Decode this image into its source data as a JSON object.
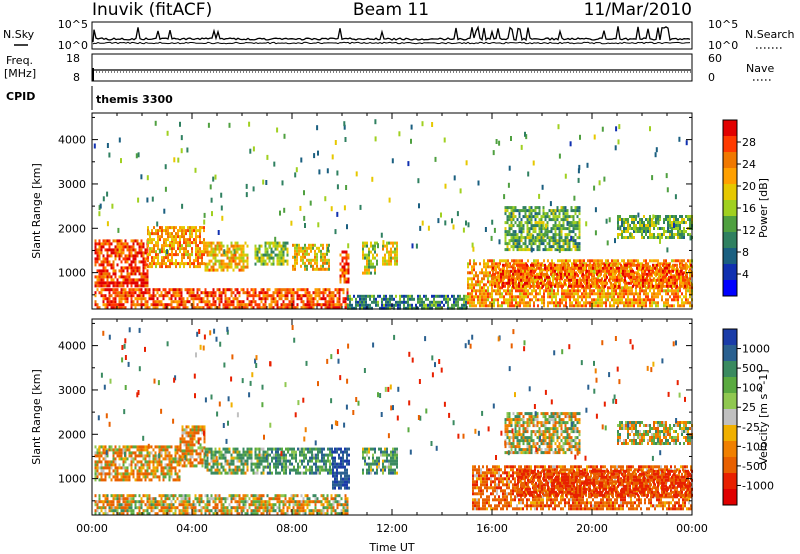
{
  "header": {
    "station": "Inuvik (fitACF)",
    "beam": "Beam 11",
    "date": "11/Mar/2010"
  },
  "aux": {
    "nsky_label": "N.Sky",
    "nsearch_label": "N.Search",
    "freq_label_1": "Freq.",
    "freq_label_2": "[MHz]",
    "nave_label": "Nave",
    "cpid_label": "CPID",
    "cpid_value": "themis 3300",
    "noise_ticks_left": [
      "10^5",
      "10^0"
    ],
    "noise_ticks_right": [
      "10^5",
      "10^0"
    ],
    "freq_ticks": [
      "18",
      "8"
    ],
    "nave_ticks": [
      "60",
      "0"
    ]
  },
  "colorbars": {
    "power_label": "Power [dB]",
    "power_ticks": [
      "28",
      "24",
      "20",
      "16",
      "12",
      "8",
      "4"
    ],
    "power_colors": [
      "#e10000",
      "#ff3a00",
      "#f07800",
      "#ffa000",
      "#e6c800",
      "#a0d020",
      "#4fa040",
      "#2f8060",
      "#1a5f80",
      "#1030b0",
      "#0000ff"
    ],
    "velocity_label": "Velocity [m s^-1]",
    "velocity_ticks": [
      "1000",
      "500",
      "100",
      "25",
      "-25",
      "-100",
      "-500",
      "-1000"
    ],
    "velocity_colors": [
      "#1a3ca8",
      "#2a6090",
      "#3a8a60",
      "#5aaa40",
      "#90c850",
      "#c0c0c0",
      "#f0b000",
      "#f08000",
      "#e86000",
      "#e82000",
      "#e00000"
    ]
  },
  "chart_data": [
    {
      "type": "heatmap",
      "title": "",
      "xlabel": "",
      "ylabel": "Slant Range [km]",
      "x_ticks": [
        "00:00",
        "04:00",
        "08:00",
        "12:00",
        "16:00",
        "20:00",
        "00:00"
      ],
      "y_ticks": [
        1000,
        2000,
        3000,
        4000
      ],
      "ylim": [
        180,
        4600
      ],
      "xlim_hours": [
        0,
        24
      ],
      "quantity": "Power",
      "units": "dB",
      "scale": [
        0,
        30
      ],
      "regions": [
        {
          "t0": 0.1,
          "t1": 2.2,
          "r0": 700,
          "r1": 1750,
          "v": 27
        },
        {
          "t0": 2.2,
          "t1": 4.5,
          "r0": 1150,
          "r1": 2050,
          "v": 22
        },
        {
          "t0": 4.5,
          "t1": 6.2,
          "r0": 1050,
          "r1": 1700,
          "v": 20
        },
        {
          "t0": 6.5,
          "t1": 7.8,
          "r0": 1200,
          "r1": 1700,
          "v": 14
        },
        {
          "t0": 8.0,
          "t1": 9.5,
          "r0": 1100,
          "r1": 1650,
          "v": 18
        },
        {
          "t0": 9.9,
          "t1": 10.3,
          "r0": 800,
          "r1": 1500,
          "v": 25
        },
        {
          "t0": 10.8,
          "t1": 11.4,
          "r0": 1000,
          "r1": 1700,
          "v": 15
        },
        {
          "t0": 11.6,
          "t1": 12.2,
          "r0": 1200,
          "r1": 1700,
          "v": 18
        },
        {
          "t0": 0.1,
          "t1": 10.2,
          "r0": 200,
          "r1": 650,
          "v": 26
        },
        {
          "t0": 10.2,
          "t1": 15.0,
          "r0": 200,
          "r1": 500,
          "v": 9
        },
        {
          "t0": 15.0,
          "t1": 24.0,
          "r0": 250,
          "r1": 1300,
          "v": 22
        },
        {
          "t0": 16.0,
          "t1": 24.0,
          "r0": 700,
          "r1": 1200,
          "v": 25
        },
        {
          "t0": 16.5,
          "t1": 19.5,
          "r0": 1500,
          "r1": 2500,
          "v": 12
        },
        {
          "t0": 21.0,
          "t1": 24.0,
          "r0": 1800,
          "r1": 2300,
          "v": 13
        }
      ]
    },
    {
      "type": "heatmap",
      "title": "",
      "xlabel": "Time UT",
      "ylabel": "Slant Range [km]",
      "x_ticks": [
        "00:00",
        "04:00",
        "08:00",
        "12:00",
        "16:00",
        "20:00",
        "00:00"
      ],
      "y_ticks": [
        1000,
        2000,
        3000,
        4000
      ],
      "ylim": [
        180,
        4600
      ],
      "xlim_hours": [
        0,
        24
      ],
      "quantity": "Velocity",
      "units": "m s^-1",
      "scale": [
        -1000,
        1000
      ],
      "regions": [
        {
          "t0": 0.1,
          "t1": 3.5,
          "r0": 950,
          "r1": 1750,
          "v": -100
        },
        {
          "t0": 3.5,
          "t1": 4.5,
          "r0": 1300,
          "r1": 2200,
          "v": -150
        },
        {
          "t0": 4.5,
          "t1": 7.0,
          "r0": 1100,
          "r1": 1700,
          "v": 150
        },
        {
          "t0": 7.0,
          "t1": 9.6,
          "r0": 1100,
          "r1": 1700,
          "v": 250
        },
        {
          "t0": 9.6,
          "t1": 10.3,
          "r0": 800,
          "r1": 1700,
          "v": 800
        },
        {
          "t0": 10.8,
          "t1": 12.2,
          "r0": 1100,
          "r1": 1700,
          "v": 200
        },
        {
          "t0": 0.1,
          "t1": 10.2,
          "r0": 200,
          "r1": 650,
          "v": -30
        },
        {
          "t0": 15.2,
          "t1": 24.0,
          "r0": 300,
          "r1": 1300,
          "v": -250
        },
        {
          "t0": 17.0,
          "t1": 24.0,
          "r0": 600,
          "r1": 1200,
          "v": -450
        },
        {
          "t0": 16.5,
          "t1": 19.5,
          "r0": 1600,
          "r1": 2500,
          "v": 10
        },
        {
          "t0": 21.0,
          "t1": 24.0,
          "r0": 1800,
          "r1": 2300,
          "v": 15
        }
      ]
    }
  ]
}
